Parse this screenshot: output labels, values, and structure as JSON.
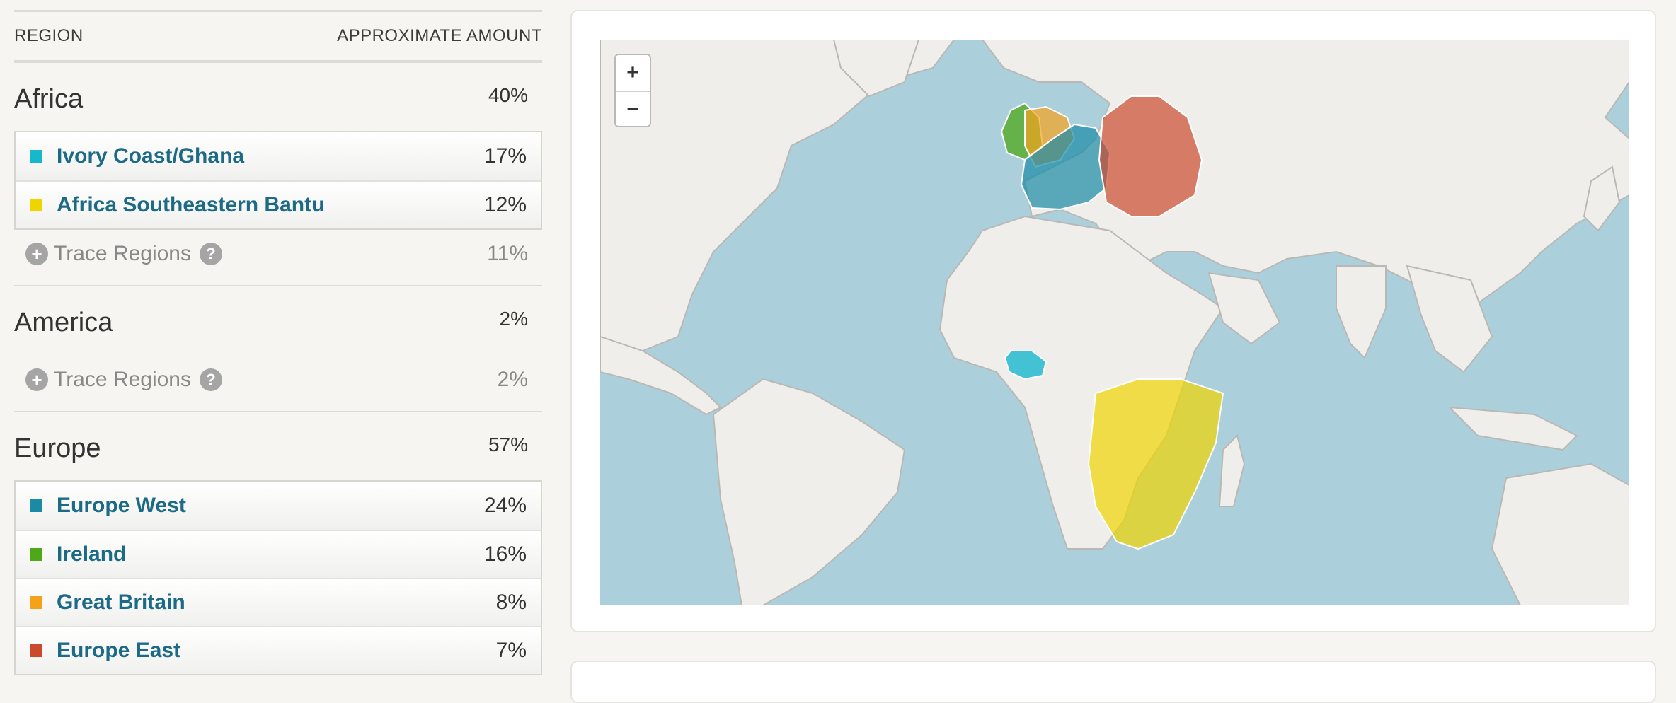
{
  "table": {
    "col_region": "REGION",
    "col_amount": "APPROXIMATE AMOUNT"
  },
  "groups": [
    {
      "name": "Africa",
      "pct": "40%",
      "subregions": [
        {
          "name": "Ivory Coast/Ghana",
          "pct": "17%",
          "color": "#17b7cc"
        },
        {
          "name": "Africa Southeastern Bantu",
          "pct": "12%",
          "color": "#f0d400"
        }
      ],
      "trace": {
        "label": "Trace Regions",
        "pct": "11%",
        "icon": "plus-circle-icon",
        "help_icon": "question-icon"
      }
    },
    {
      "name": "America",
      "pct": "2%",
      "subregions": [],
      "trace": {
        "label": "Trace Regions",
        "pct": "2%",
        "icon": "plus-circle-icon",
        "help_icon": "question-icon"
      }
    },
    {
      "name": "Europe",
      "pct": "57%",
      "subregions": [
        {
          "name": "Europe West",
          "pct": "24%",
          "color": "#1a8aa5"
        },
        {
          "name": "Ireland",
          "pct": "16%",
          "color": "#4fa81a"
        },
        {
          "name": "Great Britain",
          "pct": "8%",
          "color": "#f5a21b"
        },
        {
          "name": "Europe East",
          "pct": "7%",
          "color": "#cc4a2c"
        }
      ]
    }
  ],
  "map": {
    "zoom_in": "+",
    "zoom_out": "−",
    "ocean_color": "#abd0dc",
    "land_color": "#efeeea"
  }
}
